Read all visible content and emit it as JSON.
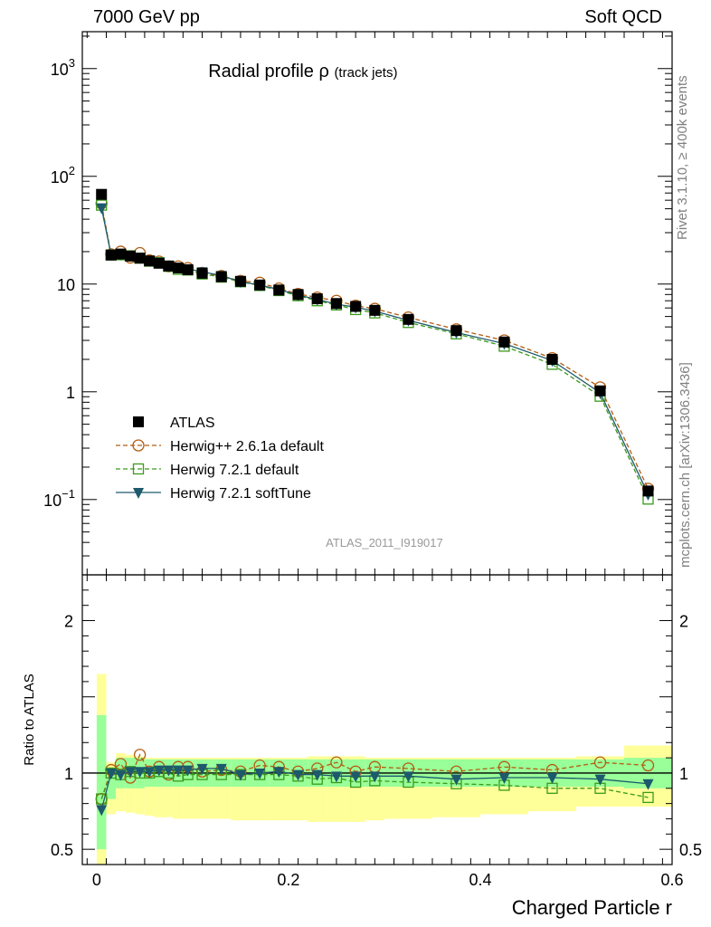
{
  "header": {
    "left": "7000 GeV pp",
    "right": "Soft QCD"
  },
  "side_labels": {
    "rivet": "Rivet 3.1.10, ≥ 400k events",
    "mcplots": "mcplots.cern.ch [arXiv:1306.3436]"
  },
  "chart_data": [
    {
      "type": "scatter",
      "panel": "main",
      "title": "Radial profile",
      "title_symbol": "ρ",
      "title_suffix": "(track jets)",
      "watermark": "ATLAS_2011_I919017",
      "xlabel": "Charged Particle r",
      "ylabel": "",
      "yscale": "log",
      "xlim": [
        -0.015,
        0.6
      ],
      "ylim": [
        0.02,
        2200
      ],
      "legend_position": "lower-left",
      "yticks": [
        {
          "value": 0.1,
          "base": "10",
          "exp": "−1"
        },
        {
          "value": 1,
          "label": "1"
        },
        {
          "value": 10,
          "label": "10"
        },
        {
          "value": 100,
          "base": "10",
          "exp": "2"
        },
        {
          "value": 1000,
          "base": "10",
          "exp": "3"
        }
      ],
      "x": [
        0.005,
        0.015,
        0.025,
        0.035,
        0.045,
        0.055,
        0.065,
        0.075,
        0.085,
        0.095,
        0.11,
        0.13,
        0.15,
        0.17,
        0.19,
        0.21,
        0.23,
        0.25,
        0.27,
        0.29,
        0.325,
        0.375,
        0.425,
        0.475,
        0.525,
        0.575
      ],
      "series": [
        {
          "name": "ATLAS",
          "color": "#000000",
          "marker": "square-filled",
          "line": "none",
          "values": [
            68,
            18.6,
            19.0,
            18.2,
            17.4,
            16.4,
            15.6,
            14.7,
            14.1,
            13.6,
            12.6,
            11.7,
            10.6,
            9.8,
            8.8,
            8.0,
            7.3,
            6.6,
            6.2,
            5.7,
            4.7,
            3.7,
            2.9,
            2.0,
            1.02,
            0.12
          ]
        },
        {
          "name": "Herwig++ 2.6.1a default",
          "color": "#b35c12",
          "marker": "circle-open",
          "line": "dashed",
          "values": [
            56,
            18.9,
            20.0,
            17.6,
            19.4,
            16.6,
            16.2,
            14.6,
            14.6,
            14.1,
            12.7,
            11.9,
            10.7,
            10.3,
            9.1,
            8.1,
            7.5,
            7.0,
            6.3,
            5.9,
            4.9,
            3.8,
            3.0,
            2.05,
            1.1,
            0.126
          ]
        },
        {
          "name": "Herwig 7.2.1 default",
          "color": "#3c9a1c",
          "marker": "square-open",
          "line": "dashed",
          "values": [
            54,
            18.6,
            18.7,
            18.3,
            17.4,
            16.3,
            15.8,
            14.6,
            13.7,
            13.5,
            12.4,
            11.6,
            10.5,
            9.7,
            8.7,
            7.8,
            7.0,
            6.4,
            5.8,
            5.4,
            4.4,
            3.45,
            2.65,
            1.8,
            0.91,
            0.101
          ]
        },
        {
          "name": "Herwig 7.2.1 softTune",
          "color": "#1d5a6c",
          "marker": "triangle-down-filled",
          "line": "solid",
          "values": [
            51,
            18.7,
            18.9,
            18.3,
            17.6,
            16.5,
            15.9,
            15.0,
            14.3,
            13.8,
            13.0,
            12.0,
            10.5,
            9.8,
            8.9,
            7.9,
            7.2,
            6.5,
            6.1,
            5.6,
            4.6,
            3.55,
            2.8,
            1.95,
            0.98,
            0.112
          ]
        }
      ]
    },
    {
      "type": "scatter",
      "panel": "ratio",
      "xlabel": "Charged Particle r",
      "ylabel": "Ratio to ATLAS",
      "ylim": [
        0.4,
        2.3
      ],
      "xlim": [
        -0.015,
        0.6
      ],
      "yticks_left": [
        {
          "value": 0.5,
          "label": "0.5"
        },
        {
          "value": 1,
          "label": "1"
        },
        {
          "value": 2,
          "label": "2"
        }
      ],
      "xticks": [
        {
          "value": 0,
          "label": "0"
        },
        {
          "value": 0.2,
          "label": "0.2"
        },
        {
          "value": 0.4,
          "label": "0.4"
        },
        {
          "value": 0.6,
          "label": "0.6"
        }
      ],
      "bands": [
        {
          "x0": 0.0,
          "x1": 0.01,
          "green": [
            0.5,
            1.38
          ],
          "yellow": [
            0.35,
            1.65
          ]
        },
        {
          "x0": 0.01,
          "x1": 0.02,
          "green": [
            0.83,
            1.03
          ],
          "yellow": [
            0.73,
            1.07
          ]
        },
        {
          "x0": 0.02,
          "x1": 0.03,
          "green": [
            0.9,
            1.1
          ],
          "yellow": [
            0.75,
            1.13
          ]
        },
        {
          "x0": 0.03,
          "x1": 0.04,
          "green": [
            0.9,
            1.1
          ],
          "yellow": [
            0.74,
            1.12
          ]
        },
        {
          "x0": 0.04,
          "x1": 0.05,
          "green": [
            0.9,
            1.1
          ],
          "yellow": [
            0.73,
            1.11
          ]
        },
        {
          "x0": 0.05,
          "x1": 0.06,
          "green": [
            0.91,
            1.09
          ],
          "yellow": [
            0.72,
            1.1
          ]
        },
        {
          "x0": 0.06,
          "x1": 0.07,
          "green": [
            0.91,
            1.09
          ],
          "yellow": [
            0.71,
            1.1
          ]
        },
        {
          "x0": 0.07,
          "x1": 0.08,
          "green": [
            0.91,
            1.09
          ],
          "yellow": [
            0.71,
            1.1
          ]
        },
        {
          "x0": 0.08,
          "x1": 0.09,
          "green": [
            0.91,
            1.09
          ],
          "yellow": [
            0.7,
            1.1
          ]
        },
        {
          "x0": 0.09,
          "x1": 0.1,
          "green": [
            0.91,
            1.09
          ],
          "yellow": [
            0.7,
            1.1
          ]
        },
        {
          "x0": 0.1,
          "x1": 0.12,
          "green": [
            0.91,
            1.09
          ],
          "yellow": [
            0.7,
            1.1
          ]
        },
        {
          "x0": 0.12,
          "x1": 0.14,
          "green": [
            0.91,
            1.09
          ],
          "yellow": [
            0.7,
            1.1
          ]
        },
        {
          "x0": 0.14,
          "x1": 0.16,
          "green": [
            0.91,
            1.09
          ],
          "yellow": [
            0.69,
            1.1
          ]
        },
        {
          "x0": 0.16,
          "x1": 0.18,
          "green": [
            0.91,
            1.09
          ],
          "yellow": [
            0.69,
            1.1
          ]
        },
        {
          "x0": 0.18,
          "x1": 0.2,
          "green": [
            0.91,
            1.09
          ],
          "yellow": [
            0.69,
            1.1
          ]
        },
        {
          "x0": 0.2,
          "x1": 0.22,
          "green": [
            0.91,
            1.09
          ],
          "yellow": [
            0.69,
            1.1
          ]
        },
        {
          "x0": 0.22,
          "x1": 0.24,
          "green": [
            0.91,
            1.09
          ],
          "yellow": [
            0.68,
            1.11
          ]
        },
        {
          "x0": 0.24,
          "x1": 0.26,
          "green": [
            0.91,
            1.09
          ],
          "yellow": [
            0.68,
            1.11
          ]
        },
        {
          "x0": 0.26,
          "x1": 0.28,
          "green": [
            0.91,
            1.09
          ],
          "yellow": [
            0.68,
            1.11
          ]
        },
        {
          "x0": 0.28,
          "x1": 0.3,
          "green": [
            0.91,
            1.09
          ],
          "yellow": [
            0.69,
            1.1
          ]
        },
        {
          "x0": 0.3,
          "x1": 0.35,
          "green": [
            0.91,
            1.09
          ],
          "yellow": [
            0.7,
            1.1
          ]
        },
        {
          "x0": 0.35,
          "x1": 0.4,
          "green": [
            0.91,
            1.09
          ],
          "yellow": [
            0.71,
            1.1
          ]
        },
        {
          "x0": 0.4,
          "x1": 0.45,
          "green": [
            0.91,
            1.09
          ],
          "yellow": [
            0.73,
            1.1
          ]
        },
        {
          "x0": 0.45,
          "x1": 0.5,
          "green": [
            0.91,
            1.09
          ],
          "yellow": [
            0.75,
            1.1
          ]
        },
        {
          "x0": 0.5,
          "x1": 0.55,
          "green": [
            0.91,
            1.09
          ],
          "yellow": [
            0.78,
            1.11
          ]
        },
        {
          "x0": 0.55,
          "x1": 0.6,
          "green": [
            0.9,
            1.1
          ],
          "yellow": [
            0.78,
            1.18
          ]
        }
      ],
      "x": [
        0.005,
        0.015,
        0.025,
        0.035,
        0.045,
        0.055,
        0.065,
        0.075,
        0.085,
        0.095,
        0.11,
        0.13,
        0.15,
        0.17,
        0.19,
        0.21,
        0.23,
        0.25,
        0.27,
        0.29,
        0.325,
        0.375,
        0.425,
        0.475,
        0.525,
        0.575
      ],
      "series": [
        {
          "name": "Herwig++ 2.6.1a default",
          "color": "#b35c12",
          "marker": "circle-open",
          "line": "dashed",
          "values": [
            0.83,
            1.02,
            1.06,
            0.97,
            1.12,
            1.01,
            1.04,
            0.99,
            1.04,
            1.04,
            1.01,
            1.02,
            1.01,
            1.05,
            1.04,
            1.01,
            1.03,
            1.07,
            1.01,
            1.04,
            1.03,
            1.01,
            1.04,
            1.02,
            1.07,
            1.05
          ]
        },
        {
          "name": "Herwig 7.2.1 default",
          "color": "#3c9a1c",
          "marker": "square-open",
          "line": "dashed",
          "values": [
            0.83,
            1.0,
            0.99,
            1.01,
            1.0,
            1.0,
            1.01,
            1.0,
            0.98,
            0.99,
            0.99,
            0.99,
            0.99,
            0.99,
            0.99,
            0.98,
            0.96,
            0.97,
            0.94,
            0.95,
            0.94,
            0.93,
            0.92,
            0.9,
            0.9,
            0.84
          ]
        },
        {
          "name": "Herwig 7.2.1 softTune",
          "color": "#1d5a6c",
          "marker": "triangle-down-filled",
          "line": "solid",
          "values": [
            0.76,
            1.0,
            0.99,
            1.01,
            1.01,
            1.01,
            1.02,
            1.02,
            1.02,
            1.02,
            1.03,
            1.03,
            0.99,
            1.0,
            1.01,
            0.99,
            0.99,
            0.98,
            0.98,
            0.98,
            0.98,
            0.96,
            0.97,
            0.97,
            0.96,
            0.93
          ]
        }
      ]
    }
  ]
}
